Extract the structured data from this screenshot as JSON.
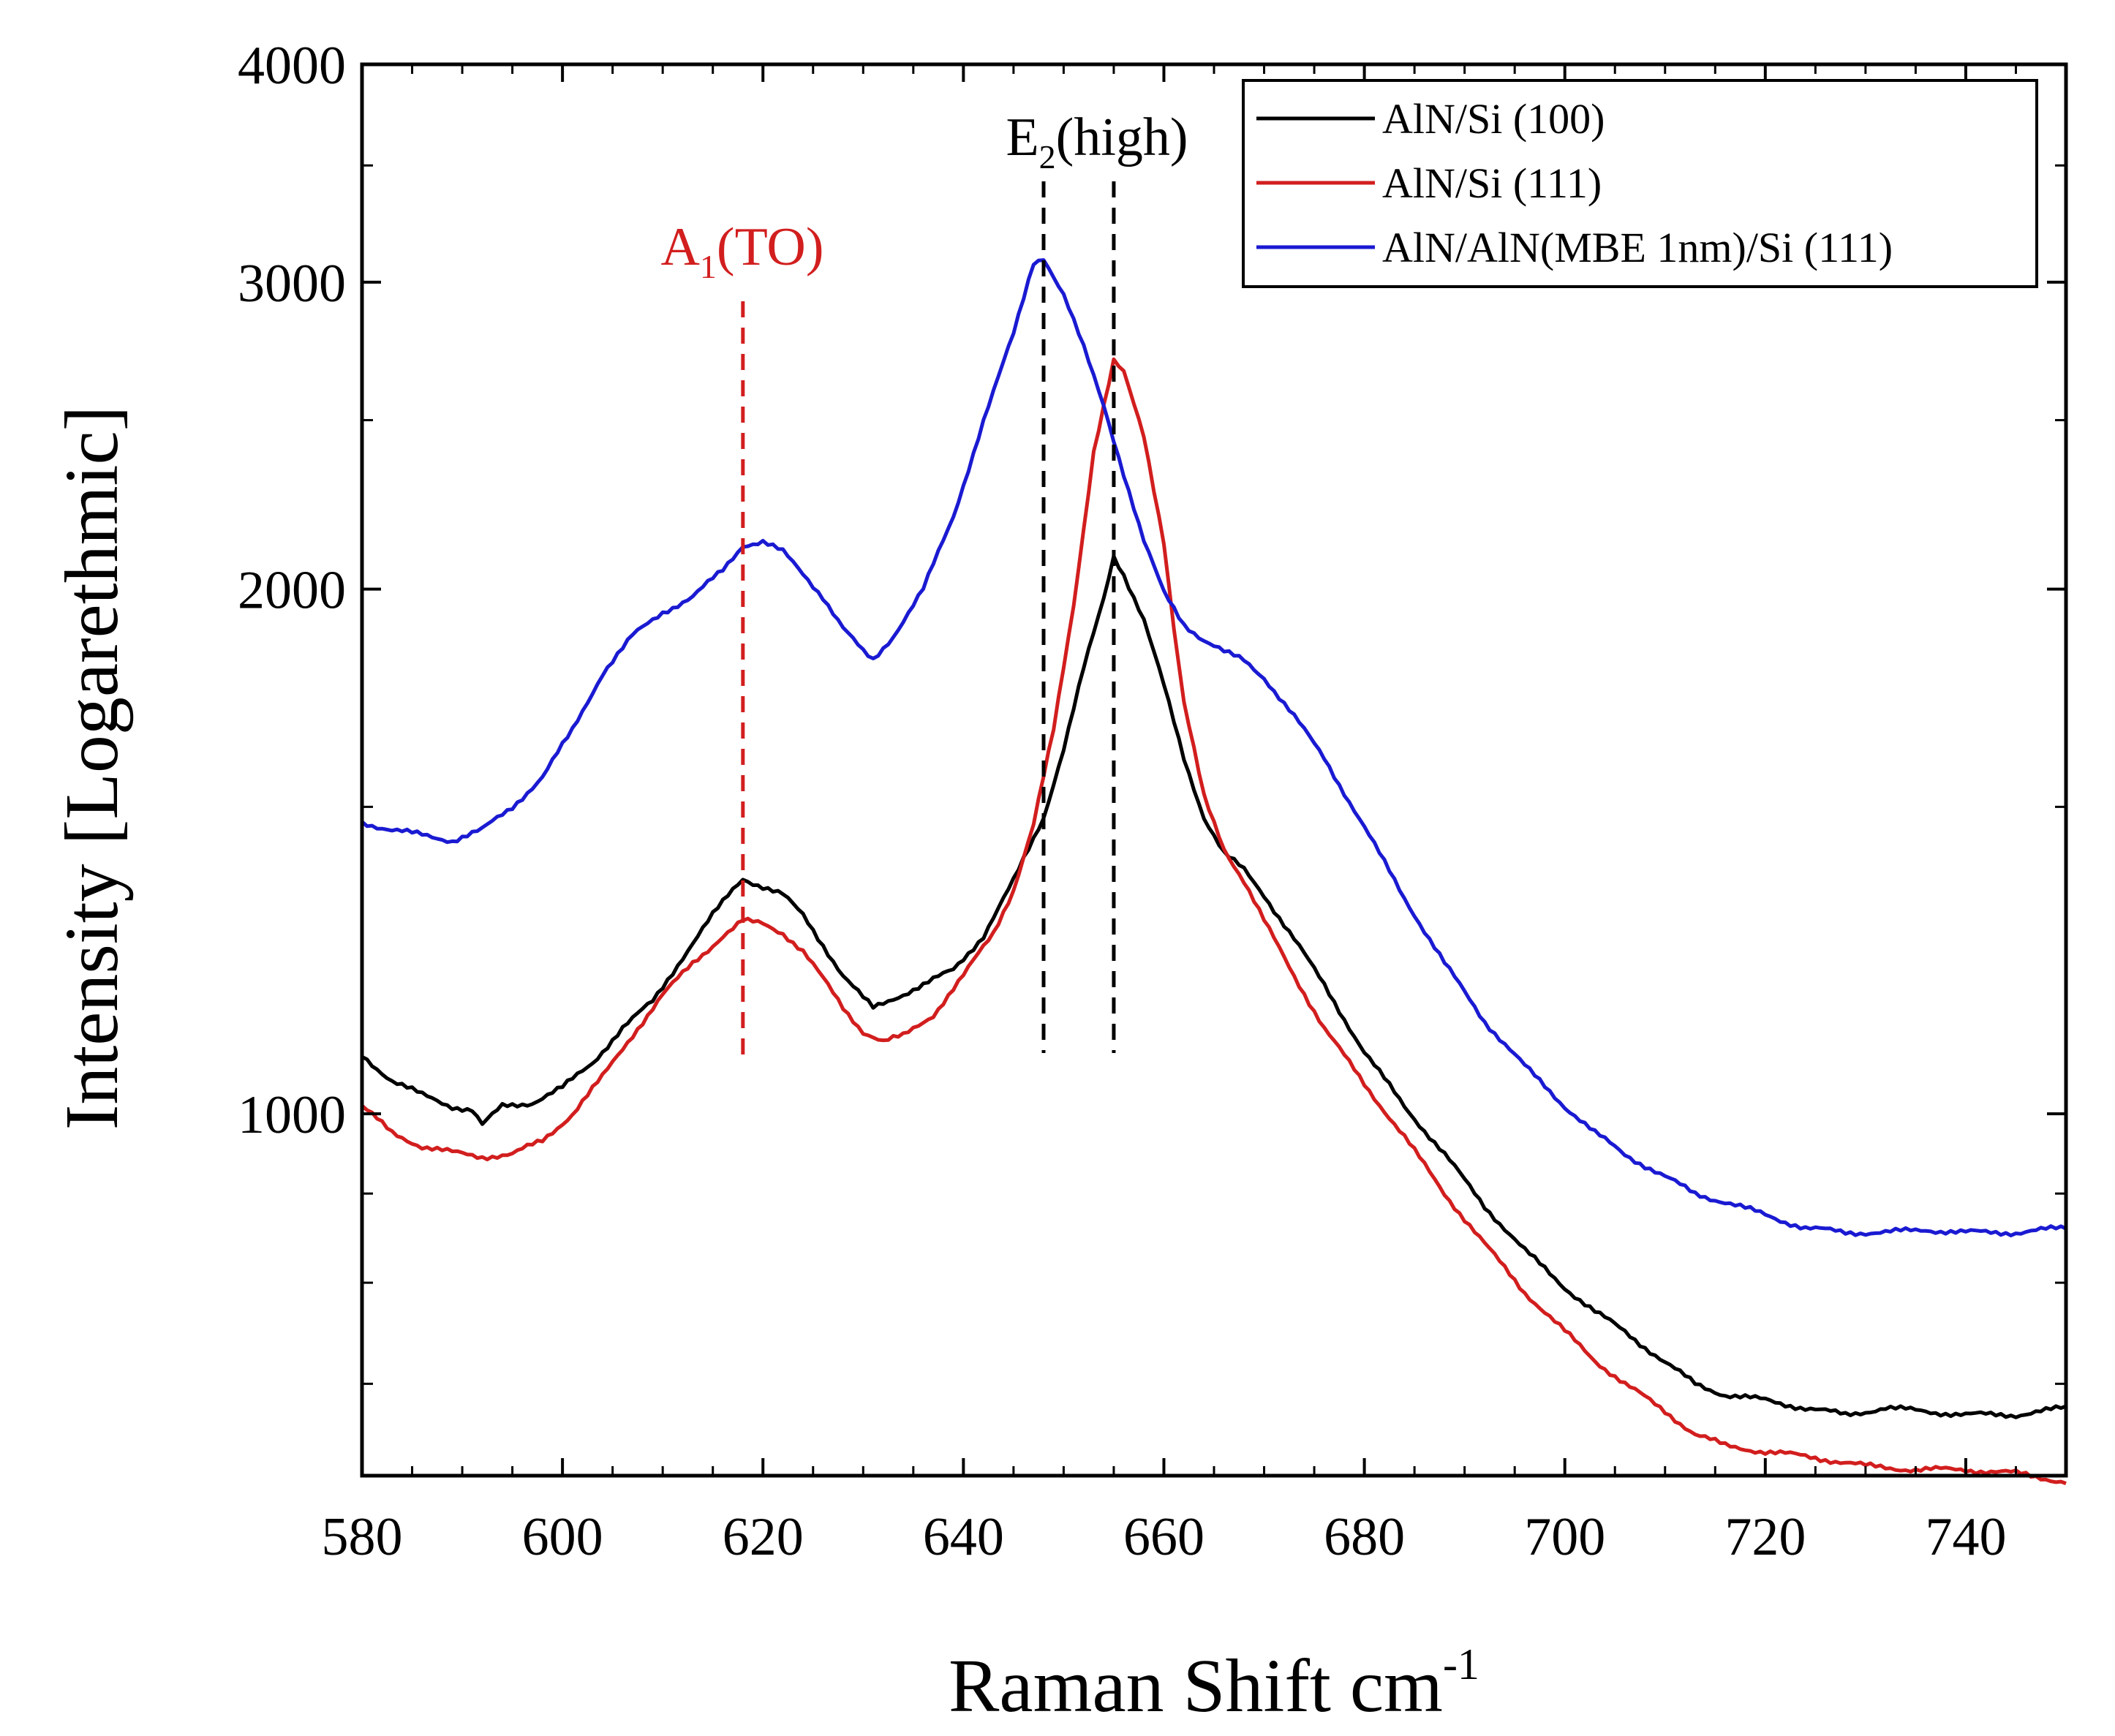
{
  "chart_data": {
    "type": "line",
    "xlabel": "Raman Shift cm",
    "xlabel_sup": "-1",
    "ylabel": "Intensity [Logarethmic]",
    "xlim": [
      580,
      750
    ],
    "ylim": [
      620,
      4000
    ],
    "yscale": "log",
    "x_ticks": [
      580,
      600,
      620,
      640,
      660,
      680,
      700,
      720,
      740
    ],
    "x_tick_labels": [
      "580",
      "600",
      "620",
      "640",
      "660",
      "680",
      "700",
      "720",
      "740"
    ],
    "y_ticks": [
      1000,
      2000,
      3000,
      4000
    ],
    "y_tick_labels": [
      "1000",
      "2000",
      "3000",
      "4000"
    ],
    "legend_position": "top-right",
    "series": [
      {
        "name": "AlN/Si (100)",
        "color": "#000000",
        "points": [
          [
            580,
            1080
          ],
          [
            583,
            1045
          ],
          [
            586,
            1025
          ],
          [
            589,
            1010
          ],
          [
            591,
            1005
          ],
          [
            592,
            985
          ],
          [
            594,
            1010
          ],
          [
            597,
            1015
          ],
          [
            600,
            1035
          ],
          [
            603,
            1070
          ],
          [
            606,
            1120
          ],
          [
            609,
            1160
          ],
          [
            612,
            1230
          ],
          [
            615,
            1300
          ],
          [
            617,
            1345
          ],
          [
            618,
            1365
          ],
          [
            620,
            1350
          ],
          [
            622,
            1335
          ],
          [
            624,
            1300
          ],
          [
            626,
            1250
          ],
          [
            628,
            1200
          ],
          [
            630,
            1165
          ],
          [
            631,
            1150
          ],
          [
            633,
            1165
          ],
          [
            636,
            1185
          ],
          [
            639,
            1210
          ],
          [
            642,
            1265
          ],
          [
            645,
            1360
          ],
          [
            648,
            1480
          ],
          [
            650,
            1620
          ],
          [
            652,
            1800
          ],
          [
            654,
            1975
          ],
          [
            655,
            2090
          ],
          [
            656,
            2040
          ],
          [
            658,
            1920
          ],
          [
            660,
            1760
          ],
          [
            662,
            1600
          ],
          [
            664,
            1480
          ],
          [
            666,
            1410
          ],
          [
            668,
            1380
          ],
          [
            670,
            1335
          ],
          [
            673,
            1260
          ],
          [
            676,
            1185
          ],
          [
            680,
            1085
          ],
          [
            684,
            1010
          ],
          [
            688,
            948
          ],
          [
            692,
            885
          ],
          [
            696,
            835
          ],
          [
            700,
            795
          ],
          [
            703,
            770
          ],
          [
            706,
            750
          ],
          [
            710,
            720
          ],
          [
            713,
            700
          ],
          [
            716,
            690
          ],
          [
            720,
            685
          ],
          [
            724,
            678
          ],
          [
            728,
            672
          ],
          [
            732,
            678
          ],
          [
            736,
            675
          ],
          [
            740,
            672
          ],
          [
            745,
            672
          ],
          [
            750,
            678
          ]
        ]
      },
      {
        "name": "AlN/Si (111)",
        "color": "#d21e1e",
        "points": [
          [
            580,
            1010
          ],
          [
            583,
            975
          ],
          [
            586,
            958
          ],
          [
            589,
            950
          ],
          [
            592,
            945
          ],
          [
            595,
            948
          ],
          [
            598,
            965
          ],
          [
            601,
            1000
          ],
          [
            604,
            1050
          ],
          [
            607,
            1110
          ],
          [
            610,
            1170
          ],
          [
            613,
            1220
          ],
          [
            616,
            1265
          ],
          [
            618,
            1290
          ],
          [
            620,
            1285
          ],
          [
            622,
            1270
          ],
          [
            624,
            1240
          ],
          [
            626,
            1195
          ],
          [
            628,
            1150
          ],
          [
            630,
            1115
          ],
          [
            632,
            1100
          ],
          [
            634,
            1108
          ],
          [
            637,
            1140
          ],
          [
            640,
            1200
          ],
          [
            643,
            1270
          ],
          [
            645,
            1345
          ],
          [
            647,
            1465
          ],
          [
            649,
            1660
          ],
          [
            651,
            1960
          ],
          [
            653,
            2400
          ],
          [
            655,
            2700
          ],
          [
            656,
            2660
          ],
          [
            658,
            2450
          ],
          [
            660,
            2130
          ],
          [
            661,
            1900
          ],
          [
            662,
            1720
          ],
          [
            664,
            1520
          ],
          [
            666,
            1420
          ],
          [
            668,
            1360
          ],
          [
            670,
            1290
          ],
          [
            673,
            1200
          ],
          [
            676,
            1120
          ],
          [
            680,
            1040
          ],
          [
            684,
            970
          ],
          [
            688,
            900
          ],
          [
            692,
            842
          ],
          [
            696,
            790
          ],
          [
            700,
            750
          ],
          [
            703,
            722
          ],
          [
            706,
            700
          ],
          [
            710,
            675
          ],
          [
            713,
            655
          ],
          [
            716,
            645
          ],
          [
            720,
            640
          ],
          [
            725,
            635
          ],
          [
            730,
            628
          ],
          [
            735,
            625
          ],
          [
            740,
            625
          ],
          [
            745,
            622
          ],
          [
            750,
            615
          ]
        ]
      },
      {
        "name": "AlN/AlN(MBE   1nm)/Si (111)",
        "color": "#1a1ad2",
        "points": [
          [
            580,
            1470
          ],
          [
            583,
            1455
          ],
          [
            586,
            1445
          ],
          [
            589,
            1435
          ],
          [
            592,
            1455
          ],
          [
            595,
            1500
          ],
          [
            598,
            1560
          ],
          [
            601,
            1660
          ],
          [
            604,
            1790
          ],
          [
            607,
            1880
          ],
          [
            610,
            1940
          ],
          [
            613,
            1980
          ],
          [
            616,
            2050
          ],
          [
            618,
            2120
          ],
          [
            620,
            2130
          ],
          [
            622,
            2100
          ],
          [
            624,
            2040
          ],
          [
            626,
            1980
          ],
          [
            628,
            1900
          ],
          [
            630,
            1840
          ],
          [
            631,
            1820
          ],
          [
            633,
            1880
          ],
          [
            636,
            2000
          ],
          [
            639,
            2200
          ],
          [
            642,
            2500
          ],
          [
            645,
            2800
          ],
          [
            647,
            3080
          ],
          [
            648,
            3100
          ],
          [
            650,
            2950
          ],
          [
            652,
            2750
          ],
          [
            654,
            2550
          ],
          [
            656,
            2330
          ],
          [
            658,
            2130
          ],
          [
            660,
            1990
          ],
          [
            662,
            1910
          ],
          [
            664,
            1870
          ],
          [
            666,
            1840
          ],
          [
            668,
            1820
          ],
          [
            670,
            1780
          ],
          [
            673,
            1690
          ],
          [
            676,
            1600
          ],
          [
            680,
            1460
          ],
          [
            684,
            1330
          ],
          [
            688,
            1220
          ],
          [
            692,
            1130
          ],
          [
            696,
            1065
          ],
          [
            700,
            1010
          ],
          [
            703,
            975
          ],
          [
            706,
            948
          ],
          [
            710,
            920
          ],
          [
            713,
            900
          ],
          [
            716,
            890
          ],
          [
            720,
            875
          ],
          [
            724,
            860
          ],
          [
            728,
            855
          ],
          [
            732,
            855
          ],
          [
            736,
            858
          ],
          [
            740,
            855
          ],
          [
            745,
            855
          ],
          [
            750,
            860
          ]
        ]
      }
    ],
    "annotations": [
      {
        "id": "a1to",
        "label": "A",
        "subscript": "1",
        "suffix": "(TO)",
        "x": 618,
        "color": "#d21e1e"
      },
      {
        "id": "e2high",
        "label": "E",
        "subscript": "2",
        "suffix": "(high)",
        "x_lines": [
          648,
          655
        ],
        "color": "#000000"
      }
    ]
  }
}
